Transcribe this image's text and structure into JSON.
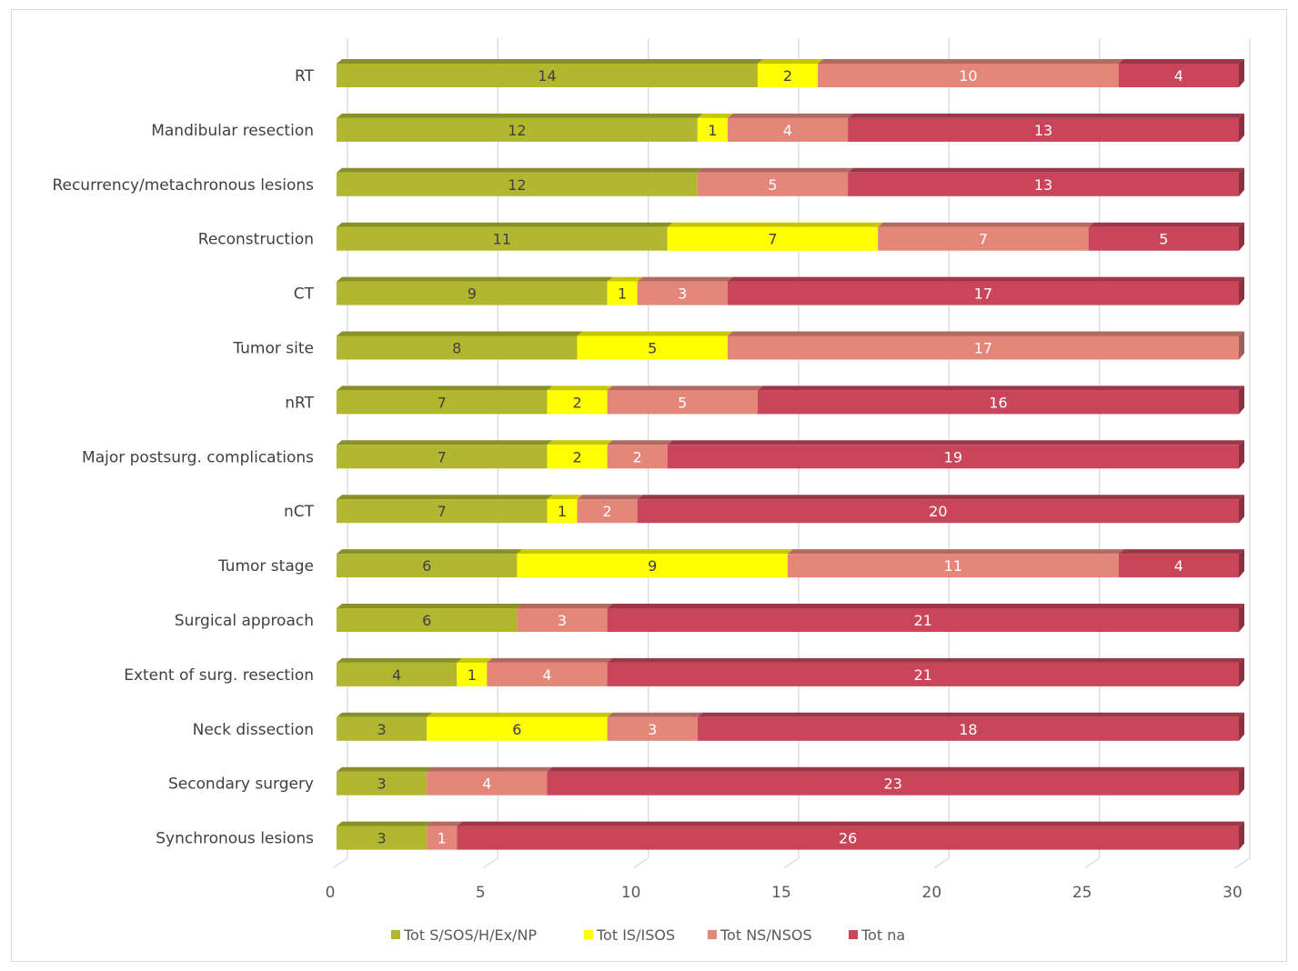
{
  "chart_data": {
    "type": "bar",
    "orientation": "horizontal",
    "stacked": true,
    "title": "",
    "xlabel": "",
    "ylabel": "",
    "xlim": [
      0,
      30
    ],
    "xticks": [
      "0",
      "5",
      "10",
      "15",
      "20",
      "25",
      "30"
    ],
    "grid": true,
    "legend_position": "bottom",
    "categories": [
      "RT",
      "Mandibular resection",
      "Recurrency/metachronous lesions",
      "Reconstruction",
      "CT",
      "Tumor site",
      "nRT",
      "Major postsurg. complications",
      "nCT",
      "Tumor stage",
      "Surgical approach",
      "Extent of surg. resection",
      "Neck dissection",
      "Secondary surgery",
      "Synchronous lesions"
    ],
    "series": [
      {
        "name": "Tot S/SOS/H/Ex/NP",
        "color": "#b1b82f",
        "values": [
          14,
          12,
          12,
          11,
          9,
          8,
          7,
          7,
          7,
          6,
          6,
          4,
          3,
          3,
          3
        ]
      },
      {
        "name": "Tot IS/ISOS",
        "color": "#ffff00",
        "values": [
          2,
          1,
          0,
          7,
          1,
          5,
          2,
          2,
          1,
          9,
          0,
          1,
          6,
          0,
          0
        ]
      },
      {
        "name": "Tot NS/NSOS",
        "color": "#e4867a",
        "values": [
          10,
          4,
          5,
          7,
          3,
          17,
          5,
          2,
          2,
          11,
          3,
          4,
          3,
          4,
          1
        ]
      },
      {
        "name": "Tot na",
        "color": "#c9455a",
        "values": [
          4,
          13,
          13,
          5,
          17,
          0,
          16,
          19,
          20,
          4,
          21,
          21,
          18,
          23,
          26
        ]
      }
    ]
  }
}
